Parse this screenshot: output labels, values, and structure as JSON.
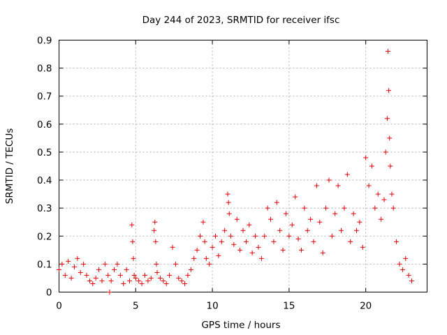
{
  "chart_data": {
    "type": "scatter",
    "title": "Day 244 of 2023, SRMTID for receiver ifsc",
    "xlabel": "GPS time / hours",
    "ylabel": "SRMTID / TECUs",
    "xlim": [
      0,
      24
    ],
    "ylim": [
      0,
      0.9
    ],
    "xticks": [
      0,
      5,
      10,
      15,
      20
    ],
    "yticks": [
      0,
      0.1,
      0.2,
      0.3,
      0.4,
      0.5,
      0.6,
      0.7,
      0.8,
      0.9
    ],
    "xtick_labels": [
      "0",
      "5",
      "10",
      "15",
      "20"
    ],
    "ytick_labels": [
      "0",
      "0.1",
      "0.2",
      "0.3",
      "0.4",
      "0.5",
      "0.6",
      "0.7",
      "0.8",
      "0.9"
    ],
    "grid": true,
    "marker": "+",
    "marker_color": "#e00000",
    "series": [
      {
        "name": "SRMTID",
        "x": [
          0.0,
          0.2,
          0.4,
          0.6,
          0.8,
          1.0,
          1.2,
          1.4,
          1.6,
          1.8,
          2.0,
          2.2,
          2.4,
          2.6,
          2.8,
          3.0,
          3.2,
          3.3,
          3.4,
          3.6,
          3.8,
          4.0,
          4.2,
          4.4,
          4.6,
          4.75,
          4.8,
          4.85,
          4.9,
          5.0,
          5.2,
          5.4,
          5.6,
          5.8,
          6.0,
          6.2,
          6.25,
          6.3,
          6.35,
          6.4,
          6.6,
          6.8,
          7.0,
          7.2,
          7.4,
          7.6,
          7.8,
          8.0,
          8.2,
          8.4,
          8.6,
          8.8,
          9.0,
          9.2,
          9.4,
          9.5,
          9.6,
          9.8,
          10.0,
          10.2,
          10.4,
          10.6,
          10.8,
          11.0,
          11.05,
          11.1,
          11.2,
          11.4,
          11.6,
          11.8,
          12.0,
          12.2,
          12.4,
          12.6,
          12.8,
          13.0,
          13.2,
          13.4,
          13.6,
          13.8,
          14.0,
          14.2,
          14.4,
          14.6,
          14.8,
          15.0,
          15.2,
          15.4,
          15.6,
          15.8,
          16.0,
          16.2,
          16.4,
          16.6,
          16.8,
          17.0,
          17.2,
          17.4,
          17.6,
          17.8,
          18.0,
          18.2,
          18.4,
          18.6,
          18.8,
          19.0,
          19.2,
          19.4,
          19.6,
          19.8,
          20.0,
          20.2,
          20.4,
          20.6,
          20.8,
          21.0,
          21.2,
          21.3,
          21.4,
          21.45,
          21.5,
          21.55,
          21.6,
          21.7,
          21.8,
          22.0,
          22.2,
          22.4,
          22.6,
          22.8,
          23.0
        ],
        "y": [
          0.08,
          0.1,
          0.06,
          0.11,
          0.05,
          0.09,
          0.12,
          0.07,
          0.1,
          0.06,
          0.04,
          0.03,
          0.05,
          0.08,
          0.04,
          0.1,
          0.06,
          0.0,
          0.04,
          0.08,
          0.1,
          0.06,
          0.03,
          0.08,
          0.04,
          0.24,
          0.18,
          0.12,
          0.06,
          0.05,
          0.04,
          0.03,
          0.06,
          0.04,
          0.05,
          0.22,
          0.25,
          0.18,
          0.1,
          0.07,
          0.05,
          0.04,
          0.03,
          0.06,
          0.16,
          0.1,
          0.05,
          0.04,
          0.03,
          0.06,
          0.08,
          0.12,
          0.15,
          0.2,
          0.25,
          0.18,
          0.12,
          0.1,
          0.16,
          0.2,
          0.13,
          0.18,
          0.22,
          0.35,
          0.32,
          0.28,
          0.2,
          0.17,
          0.26,
          0.15,
          0.22,
          0.18,
          0.24,
          0.14,
          0.2,
          0.16,
          0.12,
          0.2,
          0.3,
          0.26,
          0.18,
          0.32,
          0.22,
          0.15,
          0.28,
          0.2,
          0.24,
          0.34,
          0.19,
          0.15,
          0.3,
          0.22,
          0.26,
          0.18,
          0.38,
          0.25,
          0.14,
          0.3,
          0.4,
          0.2,
          0.28,
          0.38,
          0.22,
          0.3,
          0.42,
          0.18,
          0.28,
          0.22,
          0.25,
          0.16,
          0.48,
          0.38,
          0.45,
          0.3,
          0.35,
          0.26,
          0.33,
          0.5,
          0.62,
          0.86,
          0.72,
          0.55,
          0.45,
          0.35,
          0.3,
          0.18,
          0.1,
          0.08,
          0.12,
          0.06,
          0.04
        ]
      }
    ]
  }
}
